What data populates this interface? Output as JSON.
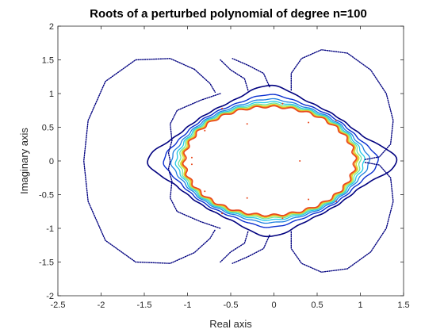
{
  "chart_data": {
    "type": "line",
    "title": "Roots of a perturbed polynomial of degree n=100",
    "xlabel": "Real axis",
    "ylabel": "Imaginary axis",
    "xlim": [
      -2.5,
      1.5
    ],
    "ylim": [
      -2,
      2
    ],
    "xticks": [
      "-2.5",
      "-2",
      "-1.5",
      "-1",
      "-0.5",
      "0",
      "0.5",
      "1",
      "1.5"
    ],
    "xtick_values": [
      -2.5,
      -2,
      -1.5,
      -1,
      -0.5,
      0,
      0.5,
      1,
      1.5
    ],
    "yticks": [
      "-2",
      "-1.5",
      "-1",
      "-0.5",
      "0",
      "0.5",
      "1",
      "1.5",
      "2"
    ],
    "ytick_values": [
      -2,
      -1.5,
      -1,
      -0.5,
      0,
      0.5,
      1,
      1.5,
      2
    ],
    "grid": false,
    "legend": "none",
    "levels": [
      {
        "color": "#00007f",
        "width": 1.6,
        "body": 1.14,
        "lobes": 0.1,
        "ripple": 0.006
      },
      {
        "color": "#0a2fcf",
        "width": 1.4,
        "body": 1.1,
        "lobes": 0.05,
        "ripple": 0.008
      },
      {
        "color": "#1f7fe0",
        "width": 1.3,
        "body": 1.07,
        "lobes": 0.03,
        "ripple": 0.01
      },
      {
        "color": "#22c9e6",
        "width": 1.3,
        "body": 1.05,
        "lobes": 0.018,
        "ripple": 0.012
      },
      {
        "color": "#6fe39a",
        "width": 1.3,
        "body": 1.035,
        "lobes": 0.01,
        "ripple": 0.014
      },
      {
        "color": "#c8e83a",
        "width": 1.3,
        "body": 1.02,
        "lobes": 0.006,
        "ripple": 0.016
      },
      {
        "color": "#f5a524",
        "width": 1.5,
        "body": 1.01,
        "lobes": 0.004,
        "ripple": 0.018
      },
      {
        "color": "#e8461b",
        "width": 1.6,
        "body": 1.0,
        "lobes": 0.002,
        "ripple": 0.02
      }
    ],
    "outer_curves": [
      {
        "name": "outer-left-loop",
        "color": "#00007f",
        "points": [
          [
            -0.92,
            1.36
          ],
          [
            -1.2,
            1.52
          ],
          [
            -1.6,
            1.5
          ],
          [
            -1.95,
            1.18
          ],
          [
            -2.15,
            0.6
          ],
          [
            -2.2,
            0
          ],
          [
            -2.15,
            -0.6
          ],
          [
            -1.95,
            -1.18
          ],
          [
            -1.6,
            -1.5
          ],
          [
            -1.2,
            -1.52
          ],
          [
            -0.92,
            -1.36
          ],
          [
            -0.74,
            -1.15
          ],
          [
            -0.68,
            -1.02
          ]
        ]
      },
      {
        "name": "outer-left-loop-top-end",
        "color": "#00007f",
        "points": [
          [
            -0.92,
            1.36
          ],
          [
            -0.74,
            1.15
          ],
          [
            -0.68,
            1.02
          ]
        ]
      },
      {
        "name": "outer-top-lobe",
        "color": "#00007f",
        "points": [
          [
            -0.3,
            1.05
          ],
          [
            -0.34,
            1.22
          ],
          [
            -0.5,
            1.35
          ],
          [
            -0.62,
            1.5
          ]
        ]
      },
      {
        "name": "outer-top-lobe-b",
        "color": "#00007f",
        "points": [
          [
            -0.05,
            1.1
          ],
          [
            -0.12,
            1.3
          ],
          [
            -0.3,
            1.42
          ],
          [
            -0.48,
            1.52
          ]
        ]
      },
      {
        "name": "outer-right-top",
        "color": "#00007f",
        "points": [
          [
            0.2,
            1.05
          ],
          [
            0.2,
            1.3
          ],
          [
            0.32,
            1.52
          ],
          [
            0.55,
            1.65
          ],
          [
            0.85,
            1.6
          ],
          [
            1.12,
            1.35
          ],
          [
            1.3,
            1.0
          ],
          [
            1.38,
            0.6
          ],
          [
            1.35,
            0.25
          ],
          [
            1.22,
            0.06
          ],
          [
            1.05,
            0.02
          ]
        ]
      },
      {
        "name": "outer-right-bottom",
        "color": "#00007f",
        "points": [
          [
            0.2,
            -1.05
          ],
          [
            0.2,
            -1.3
          ],
          [
            0.32,
            -1.52
          ],
          [
            0.55,
            -1.65
          ],
          [
            0.85,
            -1.6
          ],
          [
            1.12,
            -1.35
          ],
          [
            1.3,
            -1.0
          ],
          [
            1.38,
            -0.6
          ],
          [
            1.35,
            -0.25
          ],
          [
            1.22,
            -0.06
          ],
          [
            1.05,
            -0.02
          ]
        ]
      },
      {
        "name": "outer-bottom-lobe",
        "color": "#00007f",
        "points": [
          [
            -0.3,
            -1.05
          ],
          [
            -0.34,
            -1.22
          ],
          [
            -0.5,
            -1.35
          ],
          [
            -0.62,
            -1.5
          ]
        ]
      },
      {
        "name": "outer-bottom-lobe-b",
        "color": "#00007f",
        "points": [
          [
            -0.05,
            -1.1
          ],
          [
            -0.12,
            -1.3
          ],
          [
            -0.3,
            -1.42
          ],
          [
            -0.48,
            -1.52
          ]
        ]
      },
      {
        "name": "inner-left-wave",
        "color": "#00007f",
        "points": [
          [
            -0.62,
            1.0
          ],
          [
            -0.85,
            0.9
          ],
          [
            -1.12,
            0.75
          ],
          [
            -1.2,
            0.55
          ],
          [
            -1.18,
            0.3
          ],
          [
            -1.22,
            0.12
          ],
          [
            -1.2,
            0
          ],
          [
            -1.22,
            -0.12
          ],
          [
            -1.18,
            -0.3
          ],
          [
            -1.2,
            -0.55
          ],
          [
            -1.12,
            -0.75
          ],
          [
            -0.85,
            -0.9
          ],
          [
            -0.62,
            -1.0
          ]
        ]
      }
    ],
    "root_markers": [
      [
        -0.31,
        0.55
      ],
      [
        -0.31,
        -0.55
      ],
      [
        0.3,
        0.0
      ],
      [
        0.4,
        0.57
      ],
      [
        0.4,
        -0.57
      ],
      [
        -0.95,
        0.05
      ],
      [
        -0.95,
        -0.05
      ],
      [
        -0.6,
        0.78
      ],
      [
        -0.6,
        -0.78
      ],
      [
        0.72,
        0.6
      ],
      [
        0.72,
        -0.6
      ],
      [
        -0.8,
        0.45
      ],
      [
        -0.8,
        -0.45
      ],
      [
        0.1,
        0.85
      ],
      [
        0.1,
        -0.85
      ]
    ]
  }
}
